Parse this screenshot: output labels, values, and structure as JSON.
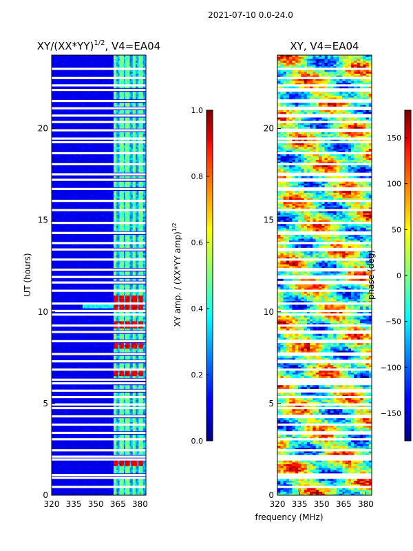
{
  "suptitle": "2021-07-10 0.0-24.0",
  "colors": {
    "gap": "#ffffff",
    "frame": "#000000"
  },
  "chart_data": [
    {
      "type": "heatmap",
      "title_base": "XY/(XX*YY)",
      "title_exp": "1/2",
      "title_suffix": ", V4=EA04",
      "xlabel": "",
      "ylabel": "UT (hours)",
      "xlim": [
        320,
        384
      ],
      "ylim": [
        0,
        24
      ],
      "xticks": [
        320,
        335,
        350,
        365,
        380
      ],
      "yticks": [
        0,
        5,
        10,
        15,
        20
      ],
      "colormap": "jet",
      "colorbar": {
        "label_base": "XY amp. / (XX*YY amp)",
        "label_exp": "1/2",
        "range": [
          0.0,
          1.0
        ],
        "ticks": [
          "0.0",
          "0.2",
          "0.4",
          "0.6",
          "0.8",
          "1.0"
        ]
      },
      "flagged_rows_ut": [
        0.45,
        0.95,
        1.1,
        1.95,
        2.1,
        2.45,
        3.05,
        3.4,
        3.85,
        4.3,
        4.75,
        4.95,
        5.35,
        5.7,
        6.1,
        6.3,
        6.85,
        7.3,
        7.7,
        8.4,
        8.9,
        9.25,
        9.85,
        10.05,
        10.45,
        11.15,
        11.6,
        11.9,
        12.3,
        12.85,
        13.4,
        13.75,
        14.3,
        14.85,
        15.55,
        16.05,
        16.7,
        17.2,
        17.5,
        18.05,
        18.65,
        19.25,
        19.45,
        19.9,
        20.35,
        20.7,
        21.1,
        21.5,
        22.1,
        22.35,
        22.75,
        23.25
      ],
      "bright_channels_mhz": [
        362.5,
        367,
        371,
        375.5,
        380
      ],
      "high_amp_times_ut": [
        1.8,
        6.7,
        8.2,
        9.3,
        10.3,
        10.7
      ]
    },
    {
      "type": "heatmap",
      "title": "XY, V4=EA04",
      "xlabel": "frequency (MHz)",
      "ylabel": "",
      "xlim": [
        320,
        384
      ],
      "ylim": [
        0,
        24
      ],
      "xticks": [
        320,
        335,
        350,
        365,
        380
      ],
      "yticks": [
        0,
        5,
        10,
        15,
        20
      ],
      "colormap": "jet",
      "colorbar": {
        "label": "phase (deg)",
        "range": [
          -180,
          180
        ],
        "ticks": [
          "150",
          "100",
          "50",
          "0",
          "−50",
          "−100",
          "−150"
        ]
      }
    }
  ]
}
